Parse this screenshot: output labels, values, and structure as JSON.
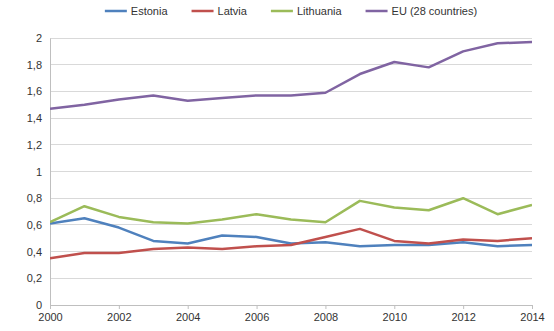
{
  "chart_data": {
    "type": "line",
    "x": [
      2000,
      2001,
      2002,
      2003,
      2004,
      2005,
      2006,
      2007,
      2008,
      2009,
      2010,
      2011,
      2012,
      2013,
      2014
    ],
    "series": [
      {
        "name": "Estonia",
        "color": "#4f81bd",
        "values": [
          0.61,
          0.65,
          0.58,
          0.48,
          0.46,
          0.52,
          0.51,
          0.46,
          0.47,
          0.44,
          0.45,
          0.45,
          0.47,
          0.44,
          0.45
        ]
      },
      {
        "name": "Latvia",
        "color": "#c0504d",
        "values": [
          0.35,
          0.39,
          0.39,
          0.42,
          0.43,
          0.42,
          0.44,
          0.45,
          0.51,
          0.57,
          0.48,
          0.46,
          0.49,
          0.48,
          0.5
        ]
      },
      {
        "name": "Lithuania",
        "color": "#9bbb59",
        "values": [
          0.62,
          0.74,
          0.66,
          0.62,
          0.61,
          0.64,
          0.68,
          0.64,
          0.62,
          0.78,
          0.73,
          0.71,
          0.8,
          0.68,
          0.75
        ]
      },
      {
        "name": "EU (28 countries)",
        "color": "#8064a2",
        "values": [
          1.47,
          1.5,
          1.54,
          1.57,
          1.53,
          1.55,
          1.57,
          1.57,
          1.59,
          1.73,
          1.82,
          1.78,
          1.9,
          1.96,
          1.97
        ]
      }
    ],
    "xlim": [
      2000,
      2014
    ],
    "xticks": [
      2000,
      2002,
      2004,
      2006,
      2008,
      2010,
      2012,
      2014
    ],
    "ylim": [
      0,
      2
    ],
    "yticks": [
      0,
      {
        "value": 0.2,
        "label": "0,2"
      },
      {
        "value": 0.4,
        "label": "0,4"
      },
      {
        "value": 0.6,
        "label": "0,6"
      },
      {
        "value": 0.8,
        "label": "0,8"
      },
      1,
      {
        "value": 1.2,
        "label": "1,2"
      },
      {
        "value": 1.4,
        "label": "1,4"
      },
      {
        "value": 1.6,
        "label": "1,6"
      },
      {
        "value": 1.8,
        "label": "1,8"
      },
      2
    ],
    "grid": true,
    "legend": "top"
  }
}
